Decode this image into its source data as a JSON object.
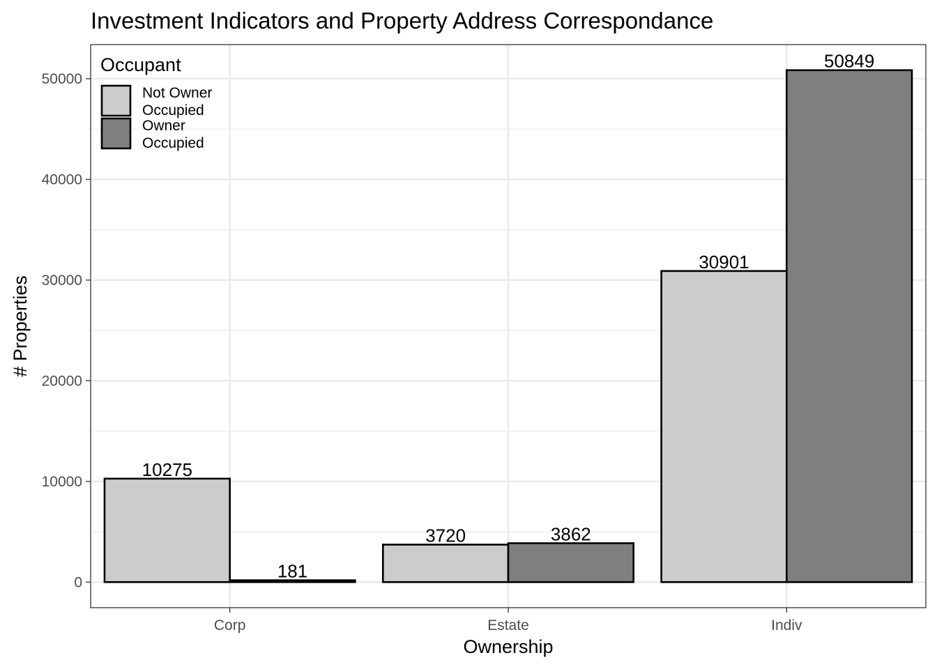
{
  "chart_data": {
    "type": "bar",
    "title": "Investment Indicators and Property Address Correspondance",
    "xlabel": "Ownership",
    "ylabel": "# Properties",
    "categories": [
      "Corp",
      "Estate",
      "Indiv"
    ],
    "series": [
      {
        "name": "Not Owner Occupied",
        "legend_lines": [
          "Not Owner",
          "Occupied"
        ],
        "color": "#cccccc",
        "values": [
          10275,
          3720,
          30901
        ]
      },
      {
        "name": "Owner Occupied",
        "legend_lines": [
          "Owner",
          "Occupied"
        ],
        "color": "#7f7f7f",
        "values": [
          181,
          3862,
          50849
        ]
      }
    ],
    "yticks": [
      0,
      10000,
      20000,
      30000,
      40000,
      50000
    ],
    "ylim": [
      -2542,
      53391
    ],
    "grid": true,
    "legend": {
      "title": "Occupant",
      "position": "top-left"
    },
    "data_labels": true
  }
}
